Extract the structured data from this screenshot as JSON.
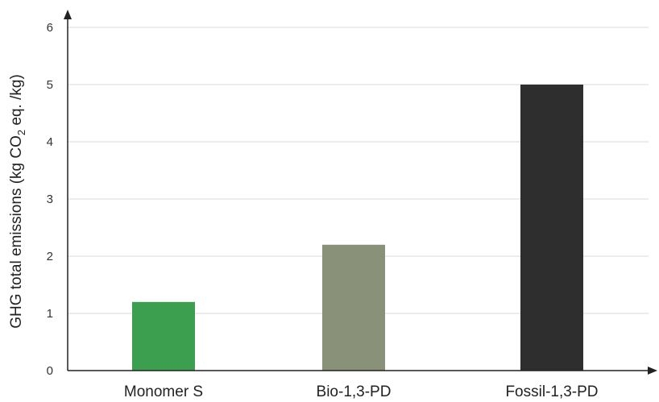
{
  "chart_data": {
    "type": "bar",
    "categories": [
      "Monomer S",
      "Bio-1,3-PD",
      "Fossil-1,3-PD"
    ],
    "values": [
      1.2,
      2.2,
      5.0
    ],
    "colors": [
      "#3c9e4f",
      "#8a9179",
      "#2e2e2e"
    ],
    "yticks": [
      0,
      1,
      2,
      3,
      4,
      5,
      6
    ],
    "ylim": [
      0,
      6
    ],
    "ylabel": {
      "prefix": "GHG total emissions (kg CO",
      "subscript": "2",
      "suffix": " eq. /kg)"
    },
    "grid": true
  }
}
